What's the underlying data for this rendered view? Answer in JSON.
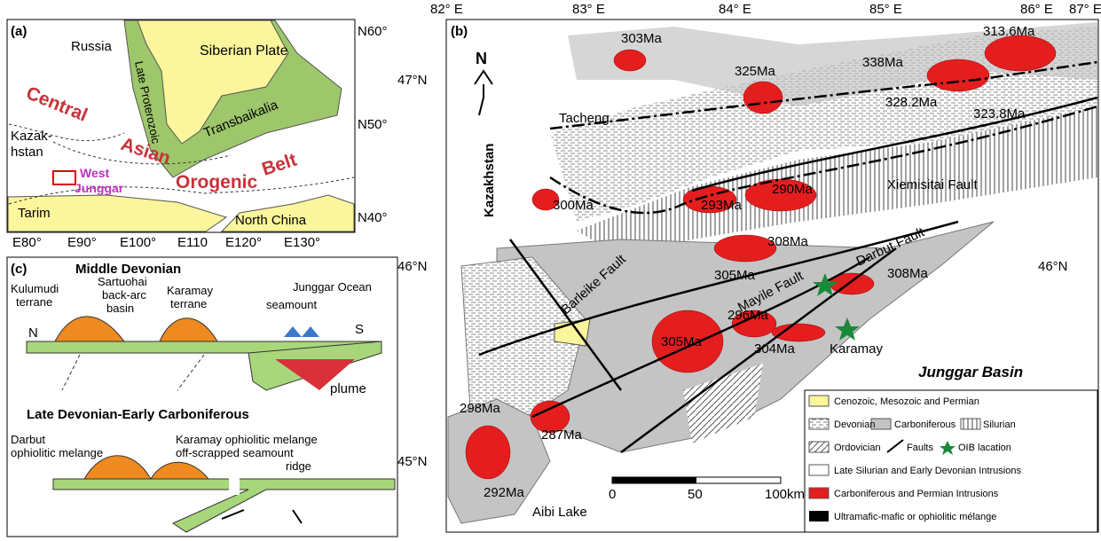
{
  "panel_a": {
    "label": "(a)",
    "russia": "Russia",
    "late_proterozoic": "Late Proterozoic",
    "siberian_plate": "Siberian Plate",
    "kazakhstan": [
      "Kazak-",
      "hstan"
    ],
    "transbaikalia": "Transbaikalia",
    "tarim": "Tarim",
    "north_china": "North China",
    "belt": [
      "Central",
      "Asian",
      "Orogenic",
      "Belt"
    ],
    "study_area": [
      "West",
      "Junggar"
    ],
    "lat_labels": [
      "N60°",
      "N50°",
      "N40°"
    ],
    "lon_labels": [
      "E80°",
      "E90°",
      "E100°",
      "E110",
      "E120°",
      "E130°"
    ]
  },
  "panel_b": {
    "label": "(b)",
    "north": "N",
    "lon_labels": [
      "82° E",
      "83° E",
      "84° E",
      "85° E",
      "86° E",
      "87° E"
    ],
    "lat_labels": [
      "47°N",
      "46°N",
      "45°N"
    ],
    "lat_right": "46°N",
    "places": {
      "tacheng": "Tacheng",
      "kazakhstan": "Kazakhstan",
      "karamay": "Karamay",
      "junggar_basin": "Junggar Basin",
      "aibi_lake": "Aibi Lake"
    },
    "faults": [
      "Xiemisitai Fault",
      "Darbut Fault",
      "Barleike Fault",
      "Mayile Fault"
    ],
    "ages": [
      "303Ma",
      "325Ma",
      "338Ma",
      "313.6Ma",
      "328.2Ma",
      "323.8Ma",
      "290Ma",
      "293Ma",
      "300Ma",
      "308Ma",
      "305Ma",
      "308Ma",
      "296Ma",
      "305Ma",
      "304Ma",
      "298Ma",
      "287Ma",
      "292Ma"
    ],
    "scale": [
      "0",
      "50",
      "100km"
    ],
    "legend": [
      "Cenozoic, Mesozoic and Permian",
      "Devonian",
      "Carboniferous",
      "Silurian",
      "Ordovician",
      "Faults",
      "OIB lacation",
      "Late Silurian and Early Devonian Intrusions",
      "Carboniferous and Permian Intrusions",
      "Ultramafic-mafic or ophiolitic mélange"
    ]
  },
  "panel_c": {
    "label": "(c)",
    "stage_1": "Middle Devonian",
    "kulumudi": [
      "Kulumudi",
      "terrane"
    ],
    "sartuohai": [
      "Sartuohai",
      "back-arc",
      "basin"
    ],
    "karamay_terrane": [
      "Karamay",
      "terrane"
    ],
    "junggar_ocean": "Junggar Ocean",
    "seamount": "seamount",
    "n": "N",
    "s": "S",
    "plume": "plume",
    "stage_2": "Late Devonian-Early Carboniferous",
    "darbut": [
      "Darbut",
      "ophiolitic melange"
    ],
    "karamay_melange": "Karamay ophiolitic melange",
    "off_scrapped": [
      "off-scrapped seamount",
      "ridge"
    ]
  }
}
